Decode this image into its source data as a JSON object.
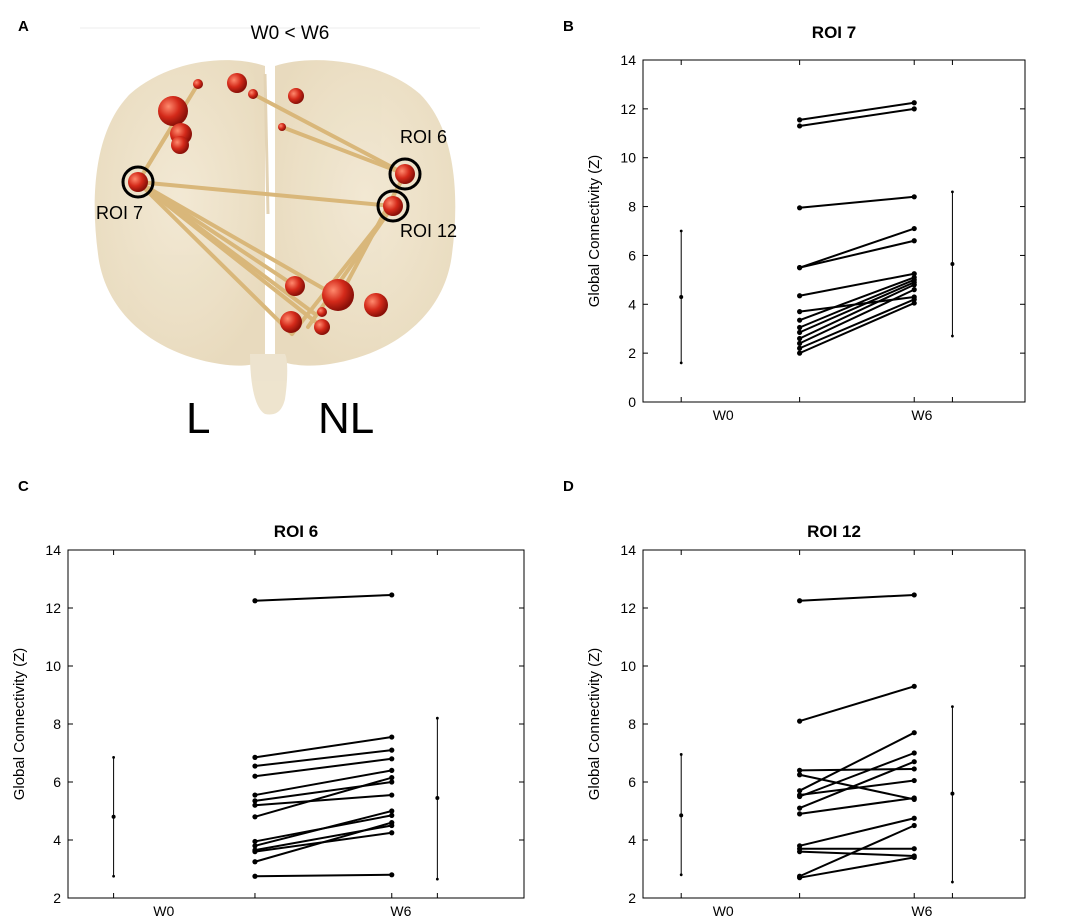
{
  "panels": {
    "a": {
      "letter": "A",
      "title": "W0 < W6",
      "roi_labels": [
        "ROI 6",
        "ROI 7",
        "ROI 12"
      ],
      "left_label": "L",
      "right_label": "NL",
      "node_color": "#d42a1a",
      "edge_color": "#d9b77a"
    },
    "b": {
      "letter": "B"
    },
    "c": {
      "letter": "C"
    },
    "d": {
      "letter": "D"
    }
  },
  "chart_data": [
    {
      "id": "roi7",
      "type": "line",
      "title": "ROI 7",
      "ylabel": "Global Connectivity (Z)",
      "xlabel": "",
      "categories": [
        "W0",
        "W6"
      ],
      "ylim": [
        0,
        14
      ],
      "yticks": [
        0,
        2,
        4,
        6,
        8,
        10,
        12,
        14
      ],
      "pairs": [
        [
          11.55,
          12.25
        ],
        [
          11.3,
          12.0
        ],
        [
          7.95,
          8.4
        ],
        [
          5.5,
          7.1
        ],
        [
          5.5,
          6.6
        ],
        [
          4.35,
          5.25
        ],
        [
          3.7,
          4.3
        ],
        [
          3.35,
          5.1
        ],
        [
          3.05,
          5.0
        ],
        [
          2.85,
          4.9
        ],
        [
          2.6,
          4.8
        ],
        [
          2.4,
          4.6
        ],
        [
          2.2,
          4.2
        ],
        [
          2.0,
          4.05
        ]
      ],
      "w0_summary": {
        "mean": 4.3,
        "low": 1.6,
        "high": 7.0
      },
      "w6_summary": {
        "mean": 5.65,
        "low": 2.7,
        "high": 8.6
      }
    },
    {
      "id": "roi6",
      "type": "line",
      "title": "ROI 6",
      "ylabel": "Global Connectivity (Z)",
      "xlabel": "",
      "categories": [
        "W0",
        "W6"
      ],
      "ylim": [
        2,
        14
      ],
      "yticks": [
        2,
        4,
        6,
        8,
        10,
        12,
        14
      ],
      "pairs": [
        [
          12.25,
          12.45
        ],
        [
          6.85,
          7.55
        ],
        [
          6.55,
          7.1
        ],
        [
          6.2,
          6.8
        ],
        [
          5.55,
          6.4
        ],
        [
          5.35,
          6.0
        ],
        [
          5.2,
          5.55
        ],
        [
          4.8,
          6.15
        ],
        [
          3.95,
          4.85
        ],
        [
          3.8,
          5.0
        ],
        [
          3.65,
          4.5
        ],
        [
          3.6,
          4.25
        ],
        [
          3.25,
          4.6
        ],
        [
          2.75,
          2.8
        ]
      ],
      "w0_summary": {
        "mean": 4.8,
        "low": 2.75,
        "high": 6.85
      },
      "w6_summary": {
        "mean": 5.45,
        "low": 2.65,
        "high": 8.2
      }
    },
    {
      "id": "roi12",
      "type": "line",
      "title": "ROI 12",
      "ylabel": "Global Connectivity (Z)",
      "xlabel": "",
      "categories": [
        "W0",
        "W6"
      ],
      "ylim": [
        2,
        14
      ],
      "yticks": [
        2,
        4,
        6,
        8,
        10,
        12,
        14
      ],
      "pairs": [
        [
          12.25,
          12.45
        ],
        [
          8.1,
          9.3
        ],
        [
          6.4,
          6.45
        ],
        [
          6.25,
          5.4
        ],
        [
          5.7,
          7.7
        ],
        [
          5.55,
          6.05
        ],
        [
          5.5,
          7.0
        ],
        [
          5.1,
          6.7
        ],
        [
          4.9,
          5.45
        ],
        [
          3.8,
          4.75
        ],
        [
          3.7,
          3.7
        ],
        [
          3.6,
          3.45
        ],
        [
          2.75,
          4.5
        ],
        [
          2.7,
          3.4
        ]
      ],
      "w0_summary": {
        "mean": 4.85,
        "low": 2.8,
        "high": 6.95
      },
      "w6_summary": {
        "mean": 5.6,
        "low": 2.55,
        "high": 8.6
      }
    }
  ]
}
